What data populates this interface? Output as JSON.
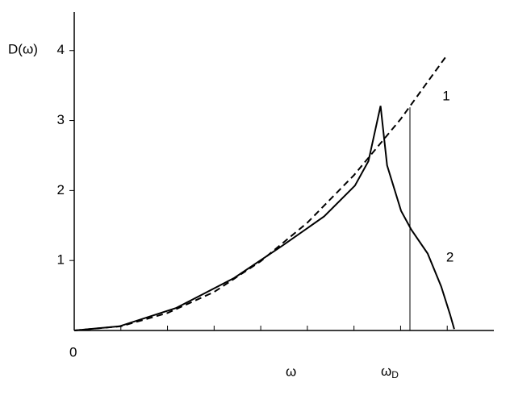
{
  "chart_data": {
    "type": "line",
    "y_label": "D(ω)",
    "x_label": "ω",
    "origin_label": "0",
    "xlim": [
      0,
      9
    ],
    "ylim": [
      0,
      4.55
    ],
    "xticks": [
      1,
      2,
      3,
      4,
      5,
      6,
      7,
      8
    ],
    "yticks": [
      1,
      2,
      3,
      4
    ],
    "marker": {
      "text": "ω",
      "subscript": "D",
      "x": 7.2,
      "y": 3.19
    },
    "series": [
      {
        "name": "1",
        "dashed": true,
        "color": "#000000",
        "x": [
          0,
          1,
          2,
          3,
          4,
          5,
          6,
          7,
          8
        ],
        "values": [
          0,
          0.06,
          0.25,
          0.55,
          0.99,
          1.54,
          2.22,
          3.02,
          3.94
        ]
      },
      {
        "name": "2",
        "dashed": false,
        "color": "#000000",
        "x": [
          0,
          0.97,
          2.18,
          3.43,
          4.46,
          5.36,
          6.02,
          6.31,
          6.57,
          6.71,
          7.01,
          7.23,
          7.58,
          7.87,
          8.06,
          8.15
        ],
        "values": [
          0,
          0.06,
          0.32,
          0.75,
          1.21,
          1.63,
          2.07,
          2.42,
          3.21,
          2.36,
          1.71,
          1.44,
          1.1,
          0.63,
          0.23,
          0.02
        ]
      }
    ]
  }
}
